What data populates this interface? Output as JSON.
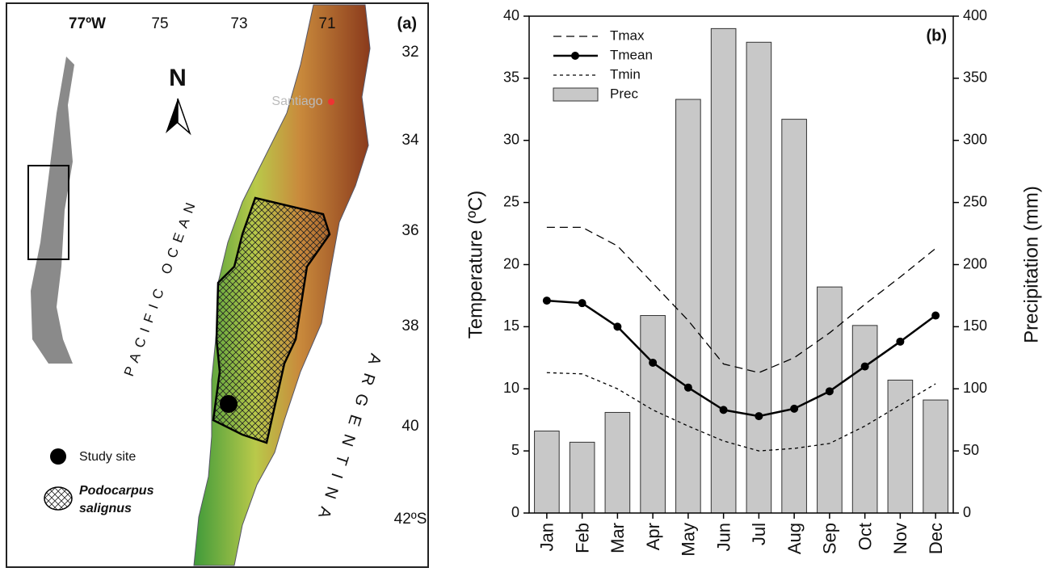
{
  "map": {
    "panel_label": "(a)",
    "lon_labels": [
      "77ºW",
      "75",
      "73",
      "71"
    ],
    "lat_labels": [
      "32",
      "34",
      "36",
      "38",
      "40",
      "42ºS"
    ],
    "north": "N",
    "city": "Santiago",
    "ocean": "PACIFIC OCEAN",
    "country": "ARGENTINA",
    "legend": {
      "site": "Study site",
      "species": [
        "Podocarpus",
        "salignus"
      ]
    }
  },
  "chart_data": {
    "type": "bar",
    "panel_label": "(b)",
    "y_label": "Temperature (ºC)",
    "y2_label": "Precipitation (mm)",
    "categories": [
      "Jan",
      "Feb",
      "Mar",
      "Apr",
      "May",
      "Jun",
      "Jul",
      "Aug",
      "Sep",
      "Oct",
      "Nov",
      "Dec"
    ],
    "series": [
      {
        "name": "Tmax",
        "type": "line",
        "linestyle": "dashed",
        "color": "#000000",
        "values": [
          23.0,
          23.0,
          21.5,
          18.5,
          15.5,
          12.0,
          11.3,
          12.5,
          14.5,
          16.8,
          19.0,
          21.3
        ]
      },
      {
        "name": "Tmean",
        "type": "line",
        "linestyle": "solid",
        "marker": "circle",
        "color": "#000000",
        "values": [
          17.1,
          16.9,
          15.0,
          12.1,
          10.1,
          8.3,
          7.8,
          8.4,
          9.8,
          11.8,
          13.8,
          15.9
        ]
      },
      {
        "name": "Tmin",
        "type": "line",
        "linestyle": "dotted",
        "color": "#000000",
        "values": [
          11.3,
          11.2,
          10.0,
          8.3,
          7.0,
          5.8,
          5.0,
          5.2,
          5.6,
          7.0,
          8.7,
          10.4
        ]
      },
      {
        "name": "Prec",
        "type": "bar",
        "axis": "y2",
        "color": "#c8c8c8",
        "values": [
          66,
          57,
          81,
          159,
          333,
          390,
          379,
          317,
          182,
          151,
          107,
          91
        ]
      }
    ],
    "ylim": [
      0,
      40
    ],
    "yticks": [
      0,
      5,
      10,
      15,
      20,
      25,
      30,
      35,
      40
    ],
    "y2lim": [
      0,
      400
    ],
    "y2ticks": [
      0,
      50,
      100,
      150,
      200,
      250,
      300,
      350,
      400
    ],
    "legend": "upper left",
    "grid": false
  }
}
